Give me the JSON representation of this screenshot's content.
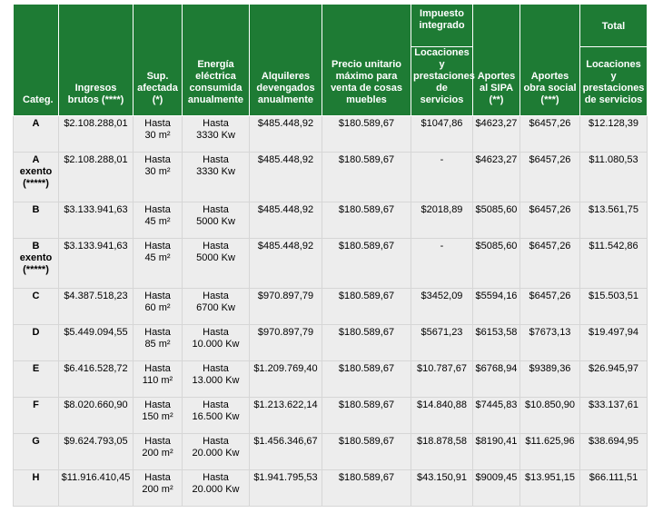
{
  "headers": {
    "categ": "Categ.",
    "ingresos": "Ingresos\nbrutos (****)",
    "sup": "Sup.\nafectada\n(*)",
    "energia": "Energía\neléctrica\nconsumida\nanualmente",
    "alquileres": "Alquileres\ndevengados\nanualmente",
    "precio": "Precio unitario\nmáximo para\nventa de cosas\nmuebles",
    "impuesto_group": "Impuesto\nintegrado",
    "impuesto_sub": "Locaciones\ny\nprestaciones\nde servicios",
    "sipa": "Aportes\nal SIPA\n(**)",
    "obra": "Aportes\nobra social\n(***)",
    "total_group": "Total",
    "total_sub": "Locaciones\ny\nprestaciones\nde servicios"
  },
  "rows": [
    {
      "categ": "A",
      "ingresos": "$2.108.288,01",
      "sup": "Hasta\n30 m²",
      "energia": "Hasta\n3330 Kw",
      "alquileres": "$485.448,92",
      "precio": "$180.589,67",
      "impuesto": "$1047,86",
      "sipa": "$4623,27",
      "obra": "$6457,26",
      "total": "$12.128,39"
    },
    {
      "categ": "A\nexento\n(*****)",
      "ingresos": "$2.108.288,01",
      "sup": "Hasta\n30 m²",
      "energia": "Hasta\n3330 Kw",
      "alquileres": "$485.448,92",
      "precio": "$180.589,67",
      "impuesto": "-",
      "sipa": "$4623,27",
      "obra": "$6457,26",
      "total": "$11.080,53"
    },
    {
      "categ": "B",
      "ingresos": "$3.133.941,63",
      "sup": "Hasta\n45 m²",
      "energia": "Hasta\n5000 Kw",
      "alquileres": "$485.448,92",
      "precio": "$180.589,67",
      "impuesto": "$2018,89",
      "sipa": "$5085,60",
      "obra": "$6457,26",
      "total": "$13.561,75"
    },
    {
      "categ": "B\nexento\n(*****)",
      "ingresos": "$3.133.941,63",
      "sup": "Hasta\n45 m²",
      "energia": "Hasta\n5000 Kw",
      "alquileres": "$485.448,92",
      "precio": "$180.589,67",
      "impuesto": "-",
      "sipa": "$5085,60",
      "obra": "$6457,26",
      "total": "$11.542,86"
    },
    {
      "categ": "C",
      "ingresos": "$4.387.518,23",
      "sup": "Hasta\n60 m²",
      "energia": "Hasta\n6700 Kw",
      "alquileres": "$970.897,79",
      "precio": "$180.589,67",
      "impuesto": "$3452,09",
      "sipa": "$5594,16",
      "obra": "$6457,26",
      "total": "$15.503,51"
    },
    {
      "categ": "D",
      "ingresos": "$5.449.094,55",
      "sup": "Hasta\n85 m²",
      "energia": "Hasta\n10.000 Kw",
      "alquileres": "$970.897,79",
      "precio": "$180.589,67",
      "impuesto": "$5671,23",
      "sipa": "$6153,58",
      "obra": "$7673,13",
      "total": "$19.497,94"
    },
    {
      "categ": "E",
      "ingresos": "$6.416.528,72",
      "sup": "Hasta\n110 m²",
      "energia": "Hasta\n13.000 Kw",
      "alquileres": "$1.209.769,40",
      "precio": "$180.589,67",
      "impuesto": "$10.787,67",
      "sipa": "$6768,94",
      "obra": "$9389,36",
      "total": "$26.945,97"
    },
    {
      "categ": "F",
      "ingresos": "$8.020.660,90",
      "sup": "Hasta\n150 m²",
      "energia": "Hasta\n16.500 Kw",
      "alquileres": "$1.213.622,14",
      "precio": "$180.589,67",
      "impuesto": "$14.840,88",
      "sipa": "$7445,83",
      "obra": "$10.850,90",
      "total": "$33.137,61"
    },
    {
      "categ": "G",
      "ingresos": "$9.624.793,05",
      "sup": "Hasta\n200 m²",
      "energia": "Hasta\n20.000 Kw",
      "alquileres": "$1.456.346,67",
      "precio": "$180.589,67",
      "impuesto": "$18.878,58",
      "sipa": "$8190,41",
      "obra": "$11.625,96",
      "total": "$38.694,95"
    },
    {
      "categ": "H",
      "ingresos": "$11.916.410,45",
      "sup": "Hasta\n200 m²",
      "energia": "Hasta\n20.000 Kw",
      "alquileres": "$1.941.795,53",
      "precio": "$180.589,67",
      "impuesto": "$43.150,91",
      "sipa": "$9009,45",
      "obra": "$13.951,15",
      "total": "$66.111,51"
    }
  ]
}
